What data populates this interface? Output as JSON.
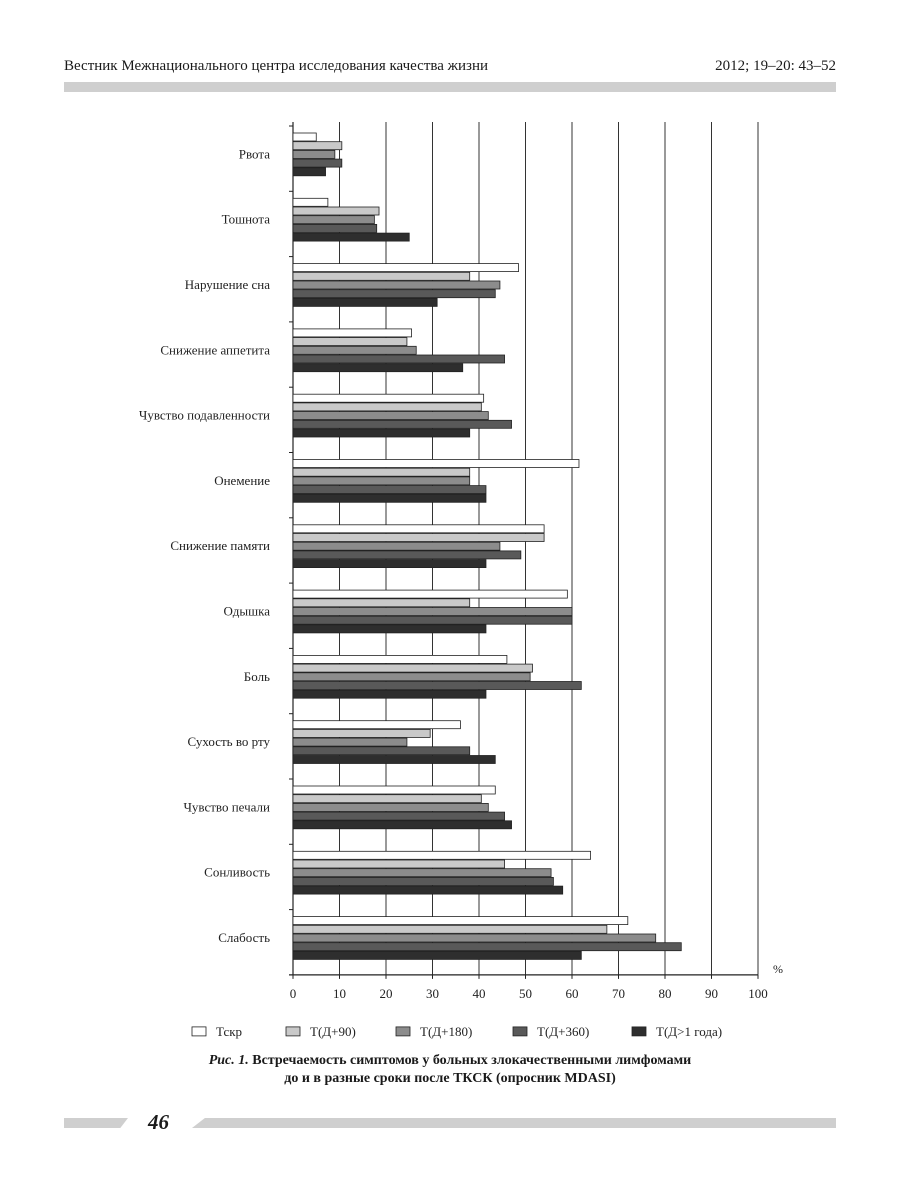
{
  "header": {
    "journal": "Вестник Межнационального центра исследования качества жизни",
    "issue": "2012; 19–20: 43–52"
  },
  "caption": {
    "fig_label": "Рис. 1.",
    "line1": "Встречаемость симптомов у больных злокачественными лимфомами",
    "line2": "до и в разные сроки после ТКСК (опросник MDASI)"
  },
  "page_number": "46",
  "chart_data": {
    "type": "bar",
    "orientation": "horizontal",
    "categories": [
      "Рвота",
      "Тошнота",
      "Нарушение сна",
      "Снижение аппетита",
      "Чувство подавленности",
      "Онемение",
      "Снижение памяти",
      "Одышка",
      "Боль",
      "Сухость во рту",
      "Чувство печали",
      "Сонливость",
      "Слабость"
    ],
    "series": [
      {
        "name": "Тскр",
        "color": "#ffffff",
        "values": [
          5,
          7.5,
          48.5,
          25.5,
          41,
          61.5,
          54,
          59,
          46,
          36,
          43.5,
          64,
          72
        ]
      },
      {
        "name": "Т(Д+90)",
        "color": "#c9c9c9",
        "values": [
          10.5,
          18.5,
          38,
          24.5,
          40.5,
          38,
          54,
          38,
          51.5,
          29.5,
          40.5,
          45.5,
          67.5
        ]
      },
      {
        "name": "Т(Д+180)",
        "color": "#8c8c8c",
        "values": [
          9,
          17.5,
          44.5,
          26.5,
          42,
          38,
          44.5,
          60,
          51,
          24.5,
          42,
          55.5,
          78
        ]
      },
      {
        "name": "Т(Д+360)",
        "color": "#595959",
        "values": [
          10.5,
          18,
          43.5,
          45.5,
          47,
          41.5,
          49,
          60,
          62,
          38,
          45.5,
          56,
          83.5
        ]
      },
      {
        "name": "Т(Д>1 года)",
        "color": "#2e2e2e",
        "values": [
          7,
          25,
          31,
          36.5,
          38,
          41.5,
          41.5,
          41.5,
          41.5,
          43.5,
          47,
          58,
          62
        ]
      }
    ],
    "x_ticks": [
      "0",
      "10",
      "20",
      "30",
      "40",
      "50",
      "60",
      "70",
      "80",
      "90",
      "100"
    ],
    "x_unit": "%",
    "xlim": [
      0,
      100
    ],
    "grid": true,
    "legend_position": "bottom"
  }
}
